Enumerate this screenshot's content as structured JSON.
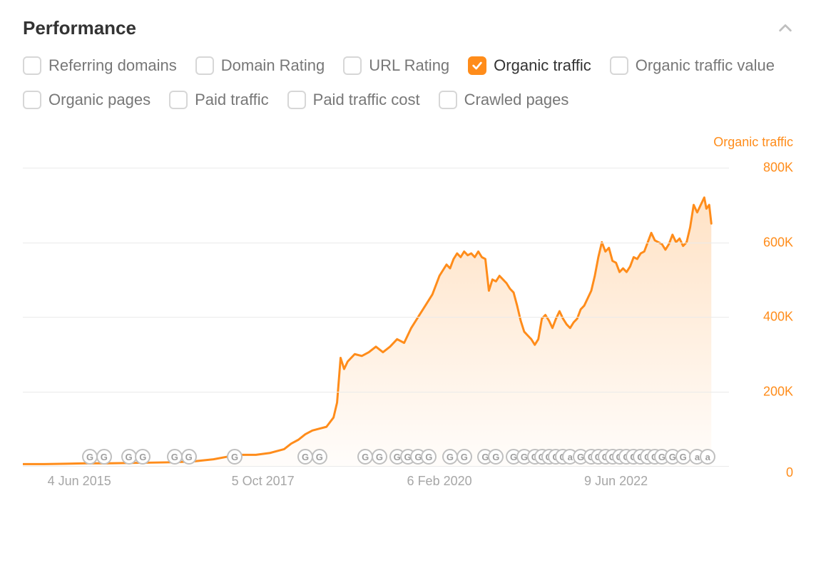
{
  "header": {
    "title": "Performance"
  },
  "filters": [
    {
      "label": "Referring domains",
      "checked": false
    },
    {
      "label": "Domain Rating",
      "checked": false
    },
    {
      "label": "URL Rating",
      "checked": false
    },
    {
      "label": "Organic traffic",
      "checked": true
    },
    {
      "label": "Organic traffic value",
      "checked": false
    },
    {
      "label": "Organic pages",
      "checked": false
    },
    {
      "label": "Paid traffic",
      "checked": false
    },
    {
      "label": "Paid traffic cost",
      "checked": false
    },
    {
      "label": "Crawled pages",
      "checked": false
    }
  ],
  "chart": {
    "type": "area",
    "series_label": "Organic traffic",
    "line_color": "#ff8c1a",
    "fill_color_top": "rgba(255,140,26,0.25)",
    "fill_color_bottom": "rgba(255,140,26,0.02)",
    "grid_color": "#eaeaea",
    "background_color": "#ffffff",
    "line_width": 3,
    "y_axis": {
      "min": 0,
      "max": 840000,
      "ticks": [
        {
          "value": 0,
          "label": "0"
        },
        {
          "value": 200000,
          "label": "200K"
        },
        {
          "value": 400000,
          "label": "400K"
        },
        {
          "value": 600000,
          "label": "600K"
        },
        {
          "value": 800000,
          "label": "800K"
        }
      ],
      "tick_color": "#ff8c1a",
      "tick_fontsize": 18
    },
    "x_axis": {
      "ticks": [
        {
          "pos": 0.08,
          "label": "4 Jun 2015"
        },
        {
          "pos": 0.34,
          "label": "5 Oct 2017"
        },
        {
          "pos": 0.59,
          "label": "6 Feb 2020"
        },
        {
          "pos": 0.84,
          "label": "9 Jun 2022"
        }
      ],
      "tick_color": "#a6a6a6",
      "tick_fontsize": 18
    },
    "data": [
      [
        0.0,
        5000
      ],
      [
        0.03,
        5000
      ],
      [
        0.06,
        6000
      ],
      [
        0.09,
        7000
      ],
      [
        0.12,
        7000
      ],
      [
        0.15,
        8000
      ],
      [
        0.18,
        9000
      ],
      [
        0.21,
        10000
      ],
      [
        0.24,
        12000
      ],
      [
        0.27,
        18000
      ],
      [
        0.29,
        25000
      ],
      [
        0.31,
        30000
      ],
      [
        0.33,
        30000
      ],
      [
        0.35,
        35000
      ],
      [
        0.37,
        45000
      ],
      [
        0.38,
        60000
      ],
      [
        0.39,
        70000
      ],
      [
        0.4,
        85000
      ],
      [
        0.41,
        95000
      ],
      [
        0.42,
        100000
      ],
      [
        0.43,
        105000
      ],
      [
        0.44,
        130000
      ],
      [
        0.445,
        170000
      ],
      [
        0.45,
        290000
      ],
      [
        0.455,
        260000
      ],
      [
        0.46,
        280000
      ],
      [
        0.47,
        300000
      ],
      [
        0.48,
        295000
      ],
      [
        0.49,
        305000
      ],
      [
        0.5,
        320000
      ],
      [
        0.51,
        305000
      ],
      [
        0.52,
        320000
      ],
      [
        0.53,
        340000
      ],
      [
        0.54,
        330000
      ],
      [
        0.55,
        370000
      ],
      [
        0.56,
        400000
      ],
      [
        0.57,
        430000
      ],
      [
        0.58,
        460000
      ],
      [
        0.59,
        510000
      ],
      [
        0.6,
        540000
      ],
      [
        0.605,
        530000
      ],
      [
        0.61,
        555000
      ],
      [
        0.615,
        570000
      ],
      [
        0.62,
        560000
      ],
      [
        0.625,
        575000
      ],
      [
        0.63,
        565000
      ],
      [
        0.635,
        570000
      ],
      [
        0.64,
        560000
      ],
      [
        0.645,
        575000
      ],
      [
        0.65,
        560000
      ],
      [
        0.655,
        555000
      ],
      [
        0.66,
        470000
      ],
      [
        0.665,
        500000
      ],
      [
        0.67,
        495000
      ],
      [
        0.675,
        510000
      ],
      [
        0.68,
        500000
      ],
      [
        0.685,
        490000
      ],
      [
        0.69,
        475000
      ],
      [
        0.695,
        465000
      ],
      [
        0.7,
        430000
      ],
      [
        0.705,
        390000
      ],
      [
        0.71,
        360000
      ],
      [
        0.715,
        350000
      ],
      [
        0.72,
        340000
      ],
      [
        0.725,
        325000
      ],
      [
        0.73,
        340000
      ],
      [
        0.735,
        395000
      ],
      [
        0.74,
        405000
      ],
      [
        0.745,
        390000
      ],
      [
        0.75,
        370000
      ],
      [
        0.755,
        395000
      ],
      [
        0.76,
        415000
      ],
      [
        0.765,
        395000
      ],
      [
        0.77,
        380000
      ],
      [
        0.775,
        370000
      ],
      [
        0.78,
        385000
      ],
      [
        0.785,
        395000
      ],
      [
        0.79,
        420000
      ],
      [
        0.795,
        430000
      ],
      [
        0.8,
        450000
      ],
      [
        0.805,
        470000
      ],
      [
        0.81,
        510000
      ],
      [
        0.815,
        560000
      ],
      [
        0.82,
        600000
      ],
      [
        0.825,
        575000
      ],
      [
        0.83,
        585000
      ],
      [
        0.835,
        550000
      ],
      [
        0.84,
        545000
      ],
      [
        0.845,
        520000
      ],
      [
        0.85,
        530000
      ],
      [
        0.855,
        520000
      ],
      [
        0.86,
        535000
      ],
      [
        0.865,
        560000
      ],
      [
        0.87,
        555000
      ],
      [
        0.875,
        570000
      ],
      [
        0.88,
        575000
      ],
      [
        0.885,
        600000
      ],
      [
        0.89,
        625000
      ],
      [
        0.895,
        605000
      ],
      [
        0.9,
        600000
      ],
      [
        0.905,
        595000
      ],
      [
        0.91,
        580000
      ],
      [
        0.915,
        595000
      ],
      [
        0.92,
        620000
      ],
      [
        0.925,
        600000
      ],
      [
        0.93,
        610000
      ],
      [
        0.935,
        590000
      ],
      [
        0.94,
        600000
      ],
      [
        0.945,
        640000
      ],
      [
        0.95,
        700000
      ],
      [
        0.955,
        680000
      ],
      [
        0.96,
        700000
      ],
      [
        0.965,
        720000
      ],
      [
        0.968,
        690000
      ],
      [
        0.972,
        700000
      ],
      [
        0.975,
        650000
      ]
    ],
    "markers": [
      {
        "pos": 0.095,
        "glyph": "G"
      },
      {
        "pos": 0.115,
        "glyph": "G"
      },
      {
        "pos": 0.15,
        "glyph": "G"
      },
      {
        "pos": 0.17,
        "glyph": "G"
      },
      {
        "pos": 0.215,
        "glyph": "G"
      },
      {
        "pos": 0.235,
        "glyph": "G"
      },
      {
        "pos": 0.3,
        "glyph": "G"
      },
      {
        "pos": 0.4,
        "glyph": "G"
      },
      {
        "pos": 0.42,
        "glyph": "G"
      },
      {
        "pos": 0.485,
        "glyph": "G"
      },
      {
        "pos": 0.505,
        "glyph": "G"
      },
      {
        "pos": 0.53,
        "glyph": "G"
      },
      {
        "pos": 0.545,
        "glyph": "G"
      },
      {
        "pos": 0.56,
        "glyph": "G"
      },
      {
        "pos": 0.575,
        "glyph": "G"
      },
      {
        "pos": 0.605,
        "glyph": "G"
      },
      {
        "pos": 0.625,
        "glyph": "G"
      },
      {
        "pos": 0.655,
        "glyph": "G"
      },
      {
        "pos": 0.67,
        "glyph": "G"
      },
      {
        "pos": 0.695,
        "glyph": "G"
      },
      {
        "pos": 0.71,
        "glyph": "G"
      },
      {
        "pos": 0.725,
        "glyph": "G"
      },
      {
        "pos": 0.735,
        "glyph": "G"
      },
      {
        "pos": 0.745,
        "glyph": "G"
      },
      {
        "pos": 0.755,
        "glyph": "G"
      },
      {
        "pos": 0.765,
        "glyph": "G"
      },
      {
        "pos": 0.775,
        "glyph": "a"
      },
      {
        "pos": 0.79,
        "glyph": "G"
      },
      {
        "pos": 0.805,
        "glyph": "G"
      },
      {
        "pos": 0.815,
        "glyph": "G"
      },
      {
        "pos": 0.825,
        "glyph": "G"
      },
      {
        "pos": 0.835,
        "glyph": "G"
      },
      {
        "pos": 0.845,
        "glyph": "G"
      },
      {
        "pos": 0.855,
        "glyph": "G"
      },
      {
        "pos": 0.865,
        "glyph": "G"
      },
      {
        "pos": 0.875,
        "glyph": "G"
      },
      {
        "pos": 0.885,
        "glyph": "G"
      },
      {
        "pos": 0.895,
        "glyph": "G"
      },
      {
        "pos": 0.905,
        "glyph": "G"
      },
      {
        "pos": 0.92,
        "glyph": "G"
      },
      {
        "pos": 0.935,
        "glyph": "G"
      },
      {
        "pos": 0.955,
        "glyph": "a"
      },
      {
        "pos": 0.97,
        "glyph": "a"
      }
    ]
  }
}
